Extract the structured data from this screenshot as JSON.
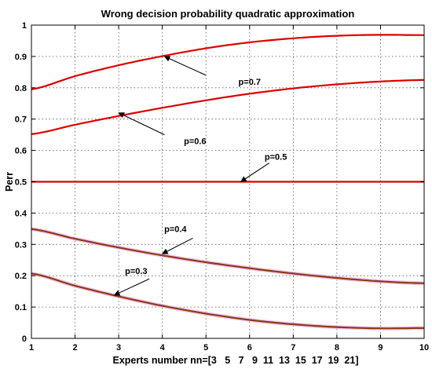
{
  "chart_data": {
    "type": "line",
    "title": "Wrong decision probability quadratic approximation",
    "xlabel": "Experts number nn=[3   5   7   9  11  13  15  17  19  21]",
    "ylabel": "Perr",
    "xlim": [
      1,
      10
    ],
    "ylim": [
      0,
      1
    ],
    "x_ticks": [
      1,
      2,
      3,
      4,
      5,
      6,
      7,
      8,
      9,
      10
    ],
    "y_ticks": [
      0,
      0.1,
      0.2,
      0.3,
      0.4,
      0.5,
      0.6,
      0.7,
      0.8,
      0.9,
      1
    ],
    "y_tick_labels": [
      "0",
      "0.1",
      "0.2",
      "0.3",
      "0.4",
      "0.5",
      "0.6",
      "0.7",
      "0.8",
      "0.9",
      "1"
    ],
    "grid": true,
    "x": [
      1,
      2,
      3,
      4,
      5,
      6,
      7,
      8,
      9,
      10
    ],
    "series": [
      {
        "name": "p=0.7",
        "color": "#dd0000",
        "values": [
          0.795,
          0.837,
          0.872,
          0.901,
          0.926,
          0.945,
          0.958,
          0.966,
          0.969,
          0.968
        ]
      },
      {
        "name": "p=0.6",
        "color": "#dd0000",
        "values": [
          0.652,
          0.682,
          0.71,
          0.736,
          0.76,
          0.781,
          0.798,
          0.811,
          0.82,
          0.825
        ]
      },
      {
        "name": "p=0.5",
        "color": "#dd0000",
        "values": [
          0.5,
          0.5,
          0.5,
          0.5,
          0.5,
          0.5,
          0.5,
          0.5,
          0.5,
          0.5
        ]
      },
      {
        "name": "p=0.4",
        "color": "#8b3a1a",
        "values": [
          0.349,
          0.318,
          0.29,
          0.265,
          0.243,
          0.224,
          0.207,
          0.193,
          0.182,
          0.176
        ]
      },
      {
        "name": "p=0.3",
        "color": "#8b3a1a",
        "values": [
          0.207,
          0.168,
          0.134,
          0.104,
          0.079,
          0.059,
          0.045,
          0.036,
          0.032,
          0.033
        ]
      }
    ],
    "annotations": [
      {
        "text": "p=0.7",
        "arrow_to": [
          4.05,
          0.9
        ]
      },
      {
        "text": "p=0.6",
        "arrow_to": [
          3.0,
          0.72
        ]
      },
      {
        "text": "p=0.5",
        "arrow_to": [
          5.8,
          0.5
        ]
      },
      {
        "text": "p=0.4",
        "arrow_to": [
          4.0,
          0.27
        ]
      },
      {
        "text": "p=0.3",
        "arrow_to": [
          2.9,
          0.138
        ]
      }
    ]
  }
}
